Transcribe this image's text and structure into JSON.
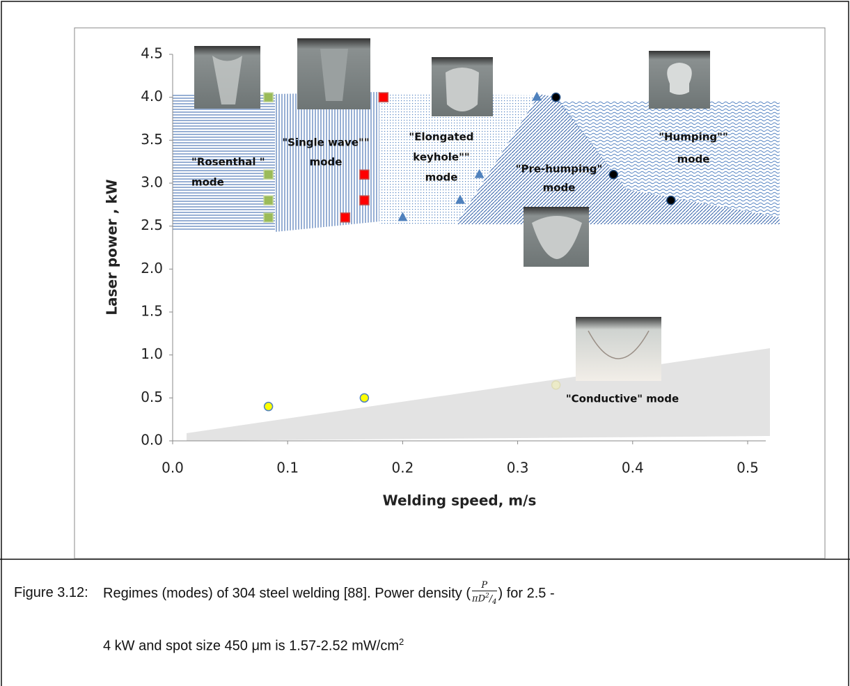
{
  "chart_data": {
    "type": "scatter",
    "x_label": "Welding speed, m/s",
    "y_label": "Laser power , kW",
    "xlim": [
      0,
      0.5
    ],
    "ylim": [
      0,
      4.5
    ],
    "xticks": [
      {
        "value": 0,
        "label": "0.0"
      },
      0.1,
      0.2,
      0.3,
      0.4,
      0.5
    ],
    "yticks": [
      {
        "value": 0,
        "label": "0.0"
      },
      0.5,
      {
        "value": 1,
        "label": "1.0"
      },
      1.5,
      {
        "value": 2,
        "label": "2.0"
      },
      2.5,
      {
        "value": 3,
        "label": "3.0"
      },
      3.5,
      {
        "value": 4,
        "label": "4.0"
      },
      4.5
    ],
    "series": [
      {
        "color": "#9bbb59",
        "marker": "square",
        "x": [
          0.0833,
          0.0833,
          0.0833,
          0.0833
        ],
        "values": [
          4.0,
          3.1,
          2.8,
          2.6
        ]
      },
      {
        "color": "#ff0000",
        "marker": "square",
        "x": [
          0.15,
          0.1667,
          0.1667,
          0.1833
        ],
        "values": [
          2.6,
          2.8,
          3.1,
          4.0
        ]
      },
      {
        "color": "#4f81bd",
        "marker": "triangle",
        "x": [
          0.2,
          0.25,
          0.2667,
          0.3167
        ],
        "values": [
          2.6,
          2.8,
          3.1,
          4.0
        ]
      },
      {
        "color": "#000000",
        "marker": "circle",
        "x": [
          0.3333,
          0.3833,
          0.4333
        ],
        "values": [
          4.0,
          3.1,
          2.8
        ]
      },
      {
        "color": "#ffff00",
        "marker": "circle",
        "x": [
          0.0833,
          0.1667
        ],
        "values": [
          0.4,
          0.5
        ]
      },
      {
        "color": "#ecebc8",
        "marker": "circle",
        "x": [
          0.3333
        ],
        "values": [
          0.65
        ]
      }
    ],
    "annotations": [
      {
        "lines": [
          "\"Rosenthal \"",
          "mode"
        ]
      },
      {
        "lines": [
          "\"Single wave\"\"",
          "mode"
        ]
      },
      {
        "lines": [
          "\"Elongated",
          "keyhole\"\"",
          "mode"
        ]
      },
      {
        "lines": [
          "\"Pre-humping\"",
          "mode"
        ]
      },
      {
        "lines": [
          "\"Humping\"\"",
          "mode"
        ]
      },
      {
        "lines": [
          "\"Conductive\" mode"
        ]
      }
    ]
  },
  "caption": {
    "label": "Figure 3.12:",
    "text_before": "Regimes (modes) of 304 steel welding [88]. Power density (",
    "fraction_numerator": "P",
    "fraction_denominator": "πD",
    "denominator_power": "2",
    "denominator_divisor": "4",
    "text_after": ") for 2.5 -",
    "line2": "4 kW and spot size 450 μm is 1.57-2.52 mW/cm",
    "line2_power": "2"
  }
}
